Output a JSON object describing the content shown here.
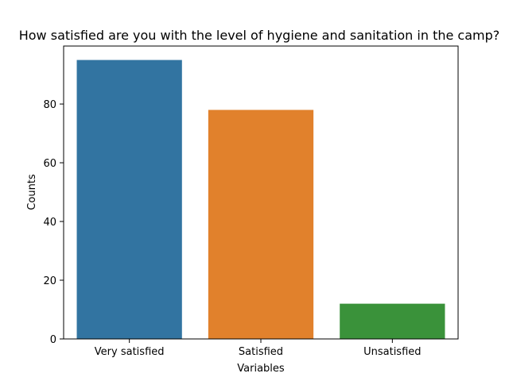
{
  "chart_data": {
    "type": "bar",
    "title": "How satisfied are you with the level of hygiene and sanitation in the camp?",
    "xlabel": "Variables",
    "ylabel": "Counts",
    "categories": [
      "Very satisfied",
      "Satisfied",
      "Unsatisfied"
    ],
    "values": [
      95,
      78,
      12
    ],
    "colors": [
      "#3274a1",
      "#e1812c",
      "#3a923a"
    ],
    "ylim": [
      0,
      99.75
    ],
    "yticks": [
      0,
      20,
      40,
      60,
      80
    ],
    "grid": false,
    "legend": "none"
  }
}
